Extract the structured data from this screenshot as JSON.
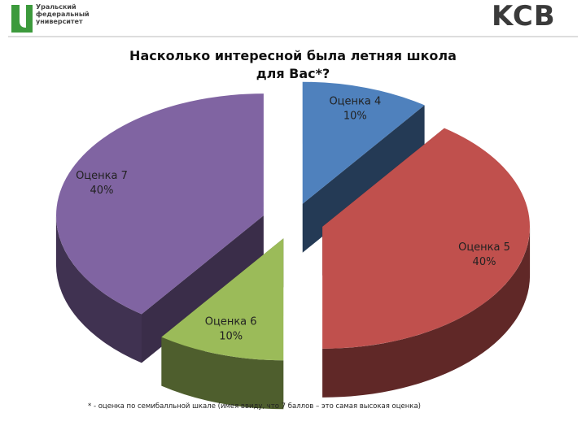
{
  "header": {
    "university": "Уральский федеральный университет",
    "logo_right": "KCB"
  },
  "chart_data": {
    "type": "pie",
    "title": "Насколько интересной была летняя школа для Вас*?",
    "categories": [
      "Оценка 4",
      "Оценка 5",
      "Оценка 6",
      "Оценка 7"
    ],
    "values": [
      10,
      40,
      10,
      40
    ],
    "value_labels": [
      "10%",
      "40%",
      "10%",
      "40%"
    ],
    "colors": [
      "#4f81bd",
      "#c0504d",
      "#9bbb59",
      "#8064a2"
    ],
    "footnote": "* - оценка по семибалльной шкале (имея ввиду, что 7 баллов – это самая высокая оценка)"
  }
}
